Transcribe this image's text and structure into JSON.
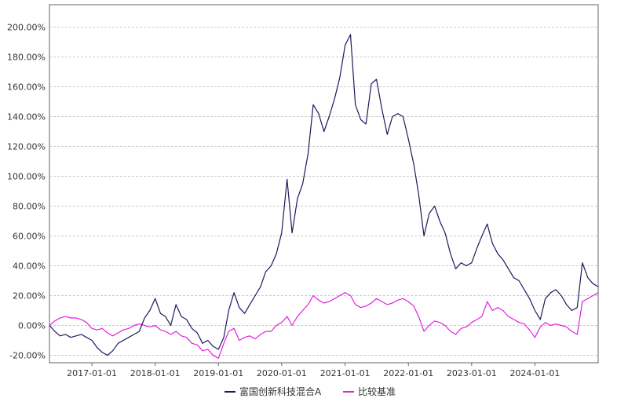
{
  "chart_data": {
    "type": "line",
    "title": "",
    "xlabel": "",
    "ylabel": "",
    "ylim": [
      -0.25,
      2.15
    ],
    "xlim": [
      "2016-05-01",
      "2024-12-31"
    ],
    "grid": true,
    "legend_position": "bottom",
    "y_ticks": [
      {
        "value": -0.2,
        "label": "-20.00%"
      },
      {
        "value": 0.0,
        "label": "0.00%"
      },
      {
        "value": 0.2,
        "label": "20.00%"
      },
      {
        "value": 0.4,
        "label": "40.00%"
      },
      {
        "value": 0.6,
        "label": "60.00%"
      },
      {
        "value": 0.8,
        "label": "80.00%"
      },
      {
        "value": 1.0,
        "label": "100.00%"
      },
      {
        "value": 1.2,
        "label": "120.00%"
      },
      {
        "value": 1.4,
        "label": "140.00%"
      },
      {
        "value": 1.6,
        "label": "160.00%"
      },
      {
        "value": 1.8,
        "label": "180.00%"
      },
      {
        "value": 2.0,
        "label": "200.00%"
      }
    ],
    "x_ticks": [
      {
        "value": "2017-01-01",
        "label": "2017-01-01"
      },
      {
        "value": "2018-01-01",
        "label": "2018-01-01"
      },
      {
        "value": "2019-01-01",
        "label": "2019-01-01"
      },
      {
        "value": "2020-01-01",
        "label": "2020-01-01"
      },
      {
        "value": "2021-01-01",
        "label": "2021-01-01"
      },
      {
        "value": "2022-01-01",
        "label": "2022-01-01"
      },
      {
        "value": "2023-01-01",
        "label": "2023-01-01"
      },
      {
        "value": "2024-01-01",
        "label": "2024-01-01"
      }
    ],
    "series": [
      {
        "name": "富国创新科技混合A",
        "color": "#1a1a5e",
        "points": [
          [
            "2016-05-01",
            0.0
          ],
          [
            "2016-06-01",
            -0.04
          ],
          [
            "2016-07-01",
            -0.07
          ],
          [
            "2016-08-01",
            -0.06
          ],
          [
            "2016-09-01",
            -0.08
          ],
          [
            "2016-10-01",
            -0.07
          ],
          [
            "2016-11-01",
            -0.06
          ],
          [
            "2016-12-01",
            -0.08
          ],
          [
            "2017-01-01",
            -0.1
          ],
          [
            "2017-02-01",
            -0.15
          ],
          [
            "2017-03-01",
            -0.18
          ],
          [
            "2017-04-01",
            -0.2
          ],
          [
            "2017-05-01",
            -0.17
          ],
          [
            "2017-06-01",
            -0.12
          ],
          [
            "2017-07-01",
            -0.1
          ],
          [
            "2017-08-01",
            -0.08
          ],
          [
            "2017-09-01",
            -0.06
          ],
          [
            "2017-10-01",
            -0.04
          ],
          [
            "2017-11-01",
            0.05
          ],
          [
            "2017-12-01",
            0.1
          ],
          [
            "2018-01-01",
            0.18
          ],
          [
            "2018-02-01",
            0.08
          ],
          [
            "2018-03-01",
            0.06
          ],
          [
            "2018-04-01",
            0.0
          ],
          [
            "2018-05-01",
            0.14
          ],
          [
            "2018-06-01",
            0.06
          ],
          [
            "2018-07-01",
            0.04
          ],
          [
            "2018-08-01",
            -0.02
          ],
          [
            "2018-09-01",
            -0.05
          ],
          [
            "2018-10-01",
            -0.12
          ],
          [
            "2018-11-01",
            -0.1
          ],
          [
            "2018-12-01",
            -0.14
          ],
          [
            "2019-01-01",
            -0.16
          ],
          [
            "2019-02-01",
            -0.08
          ],
          [
            "2019-03-01",
            0.1
          ],
          [
            "2019-04-01",
            0.22
          ],
          [
            "2019-05-01",
            0.12
          ],
          [
            "2019-06-01",
            0.08
          ],
          [
            "2019-07-01",
            0.14
          ],
          [
            "2019-08-01",
            0.2
          ],
          [
            "2019-09-01",
            0.26
          ],
          [
            "2019-10-01",
            0.36
          ],
          [
            "2019-11-01",
            0.4
          ],
          [
            "2019-12-01",
            0.48
          ],
          [
            "2020-01-01",
            0.62
          ],
          [
            "2020-02-01",
            0.98
          ],
          [
            "2020-03-01",
            0.62
          ],
          [
            "2020-04-01",
            0.85
          ],
          [
            "2020-05-01",
            0.95
          ],
          [
            "2020-06-01",
            1.15
          ],
          [
            "2020-07-01",
            1.48
          ],
          [
            "2020-08-01",
            1.42
          ],
          [
            "2020-09-01",
            1.3
          ],
          [
            "2020-10-01",
            1.4
          ],
          [
            "2020-11-01",
            1.52
          ],
          [
            "2020-12-01",
            1.66
          ],
          [
            "2021-01-01",
            1.88
          ],
          [
            "2021-02-01",
            1.95
          ],
          [
            "2021-03-01",
            1.48
          ],
          [
            "2021-04-01",
            1.38
          ],
          [
            "2021-05-01",
            1.35
          ],
          [
            "2021-06-01",
            1.62
          ],
          [
            "2021-07-01",
            1.65
          ],
          [
            "2021-08-01",
            1.45
          ],
          [
            "2021-09-01",
            1.28
          ],
          [
            "2021-10-01",
            1.4
          ],
          [
            "2021-11-01",
            1.42
          ],
          [
            "2021-12-01",
            1.4
          ],
          [
            "2022-01-01",
            1.25
          ],
          [
            "2022-02-01",
            1.08
          ],
          [
            "2022-03-01",
            0.88
          ],
          [
            "2022-04-01",
            0.6
          ],
          [
            "2022-05-01",
            0.75
          ],
          [
            "2022-06-01",
            0.8
          ],
          [
            "2022-07-01",
            0.7
          ],
          [
            "2022-08-01",
            0.62
          ],
          [
            "2022-09-01",
            0.48
          ],
          [
            "2022-10-01",
            0.38
          ],
          [
            "2022-11-01",
            0.42
          ],
          [
            "2022-12-01",
            0.4
          ],
          [
            "2023-01-01",
            0.42
          ],
          [
            "2023-02-01",
            0.52
          ],
          [
            "2023-03-01",
            0.6
          ],
          [
            "2023-04-01",
            0.68
          ],
          [
            "2023-05-01",
            0.55
          ],
          [
            "2023-06-01",
            0.48
          ],
          [
            "2023-07-01",
            0.44
          ],
          [
            "2023-08-01",
            0.38
          ],
          [
            "2023-09-01",
            0.32
          ],
          [
            "2023-10-01",
            0.3
          ],
          [
            "2023-11-01",
            0.24
          ],
          [
            "2023-12-01",
            0.18
          ],
          [
            "2024-01-01",
            0.1
          ],
          [
            "2024-02-01",
            0.04
          ],
          [
            "2024-03-01",
            0.18
          ],
          [
            "2024-04-01",
            0.22
          ],
          [
            "2024-05-01",
            0.24
          ],
          [
            "2024-06-01",
            0.2
          ],
          [
            "2024-07-01",
            0.14
          ],
          [
            "2024-08-01",
            0.1
          ],
          [
            "2024-09-01",
            0.12
          ],
          [
            "2024-10-01",
            0.42
          ],
          [
            "2024-11-01",
            0.32
          ],
          [
            "2024-12-01",
            0.28
          ],
          [
            "2024-12-31",
            0.26
          ]
        ]
      },
      {
        "name": "比较基准",
        "color": "#e020e0",
        "points": [
          [
            "2016-05-01",
            0.0
          ],
          [
            "2016-06-01",
            0.03
          ],
          [
            "2016-07-01",
            0.05
          ],
          [
            "2016-08-01",
            0.06
          ],
          [
            "2016-09-01",
            0.05
          ],
          [
            "2016-10-01",
            0.05
          ],
          [
            "2016-11-01",
            0.04
          ],
          [
            "2016-12-01",
            0.02
          ],
          [
            "2017-01-01",
            -0.02
          ],
          [
            "2017-02-01",
            -0.03
          ],
          [
            "2017-03-01",
            -0.02
          ],
          [
            "2017-04-01",
            -0.05
          ],
          [
            "2017-05-01",
            -0.07
          ],
          [
            "2017-06-01",
            -0.05
          ],
          [
            "2017-07-01",
            -0.03
          ],
          [
            "2017-08-01",
            -0.02
          ],
          [
            "2017-09-01",
            0.0
          ],
          [
            "2017-10-01",
            0.01
          ],
          [
            "2017-11-01",
            0.0
          ],
          [
            "2017-12-01",
            -0.01
          ],
          [
            "2018-01-01",
            0.0
          ],
          [
            "2018-02-01",
            -0.03
          ],
          [
            "2018-03-01",
            -0.04
          ],
          [
            "2018-04-01",
            -0.06
          ],
          [
            "2018-05-01",
            -0.04
          ],
          [
            "2018-06-01",
            -0.07
          ],
          [
            "2018-07-01",
            -0.08
          ],
          [
            "2018-08-01",
            -0.12
          ],
          [
            "2018-09-01",
            -0.13
          ],
          [
            "2018-10-01",
            -0.17
          ],
          [
            "2018-11-01",
            -0.16
          ],
          [
            "2018-12-01",
            -0.2
          ],
          [
            "2019-01-01",
            -0.22
          ],
          [
            "2019-02-01",
            -0.12
          ],
          [
            "2019-03-01",
            -0.04
          ],
          [
            "2019-04-01",
            -0.02
          ],
          [
            "2019-05-01",
            -0.1
          ],
          [
            "2019-06-01",
            -0.08
          ],
          [
            "2019-07-01",
            -0.07
          ],
          [
            "2019-08-01",
            -0.09
          ],
          [
            "2019-09-01",
            -0.06
          ],
          [
            "2019-10-01",
            -0.04
          ],
          [
            "2019-11-01",
            -0.04
          ],
          [
            "2019-12-01",
            0.0
          ],
          [
            "2020-01-01",
            0.02
          ],
          [
            "2020-02-01",
            0.06
          ],
          [
            "2020-03-01",
            0.0
          ],
          [
            "2020-04-01",
            0.06
          ],
          [
            "2020-05-01",
            0.1
          ],
          [
            "2020-06-01",
            0.14
          ],
          [
            "2020-07-01",
            0.2
          ],
          [
            "2020-08-01",
            0.17
          ],
          [
            "2020-09-01",
            0.15
          ],
          [
            "2020-10-01",
            0.16
          ],
          [
            "2020-11-01",
            0.18
          ],
          [
            "2020-12-01",
            0.2
          ],
          [
            "2021-01-01",
            0.22
          ],
          [
            "2021-02-01",
            0.2
          ],
          [
            "2021-03-01",
            0.14
          ],
          [
            "2021-04-01",
            0.12
          ],
          [
            "2021-05-01",
            0.13
          ],
          [
            "2021-06-01",
            0.15
          ],
          [
            "2021-07-01",
            0.18
          ],
          [
            "2021-08-01",
            0.16
          ],
          [
            "2021-09-01",
            0.14
          ],
          [
            "2021-10-01",
            0.15
          ],
          [
            "2021-11-01",
            0.17
          ],
          [
            "2021-12-01",
            0.18
          ],
          [
            "2022-01-01",
            0.16
          ],
          [
            "2022-02-01",
            0.13
          ],
          [
            "2022-03-01",
            0.06
          ],
          [
            "2022-04-01",
            -0.04
          ],
          [
            "2022-05-01",
            0.0
          ],
          [
            "2022-06-01",
            0.03
          ],
          [
            "2022-07-01",
            0.02
          ],
          [
            "2022-08-01",
            0.0
          ],
          [
            "2022-09-01",
            -0.04
          ],
          [
            "2022-10-01",
            -0.06
          ],
          [
            "2022-11-01",
            -0.02
          ],
          [
            "2022-12-01",
            -0.01
          ],
          [
            "2023-01-01",
            0.02
          ],
          [
            "2023-02-01",
            0.04
          ],
          [
            "2023-03-01",
            0.06
          ],
          [
            "2023-04-01",
            0.16
          ],
          [
            "2023-05-01",
            0.1
          ],
          [
            "2023-06-01",
            0.12
          ],
          [
            "2023-07-01",
            0.1
          ],
          [
            "2023-08-01",
            0.06
          ],
          [
            "2023-09-01",
            0.04
          ],
          [
            "2023-10-01",
            0.02
          ],
          [
            "2023-11-01",
            0.01
          ],
          [
            "2023-12-01",
            -0.03
          ],
          [
            "2024-01-01",
            -0.08
          ],
          [
            "2024-02-01",
            -0.01
          ],
          [
            "2024-03-01",
            0.02
          ],
          [
            "2024-04-01",
            0.0
          ],
          [
            "2024-05-01",
            0.01
          ],
          [
            "2024-06-01",
            0.0
          ],
          [
            "2024-07-01",
            -0.01
          ],
          [
            "2024-08-01",
            -0.04
          ],
          [
            "2024-09-01",
            -0.06
          ],
          [
            "2024-10-01",
            0.16
          ],
          [
            "2024-11-01",
            0.18
          ],
          [
            "2024-12-01",
            0.2
          ],
          [
            "2024-12-31",
            0.22
          ]
        ]
      }
    ]
  }
}
